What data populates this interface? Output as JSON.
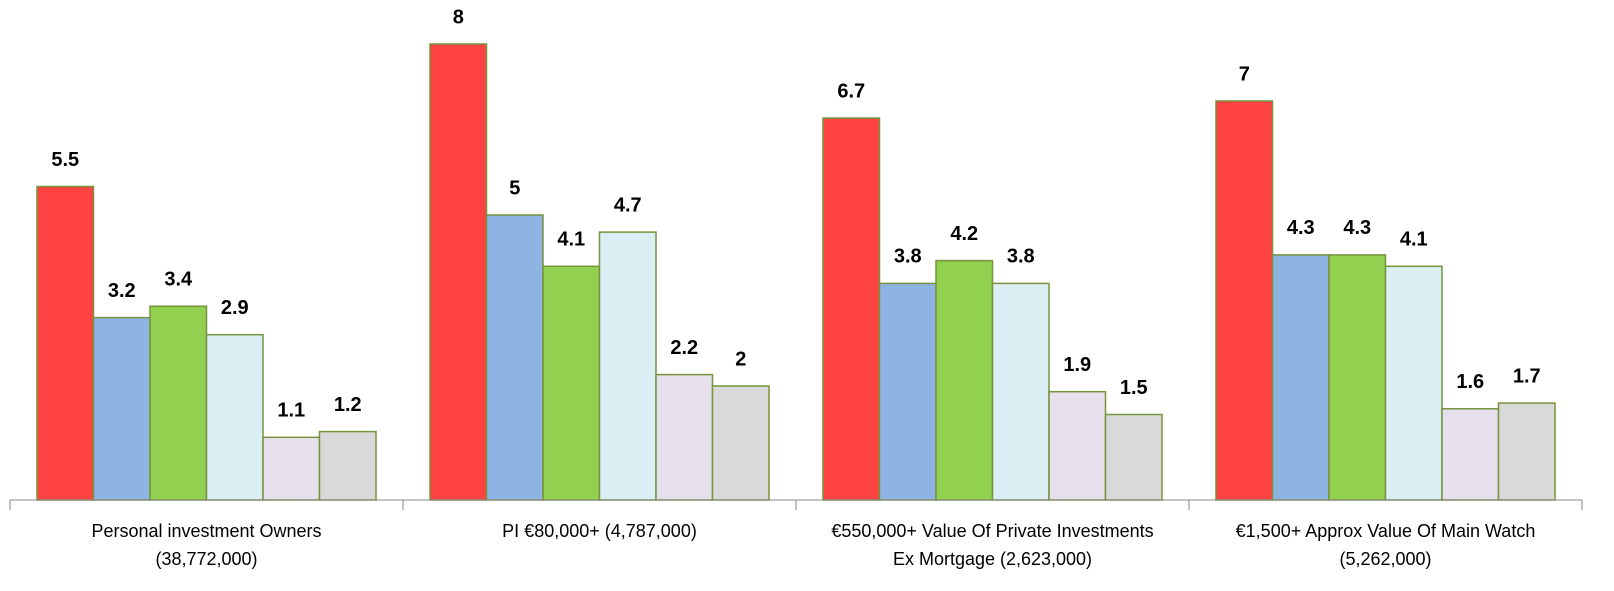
{
  "chart_data": {
    "type": "bar",
    "categories": [
      [
        "Personal investment Owners",
        "(38,772,000)"
      ],
      [
        "PI €80,000+ (4,787,000)"
      ],
      [
        "€550,000+ Value Of Private Investments",
        "Ex Mortgage (2,623,000)"
      ],
      [
        "€1,500+ Approx Value Of Main Watch",
        "(5,262,000)"
      ]
    ],
    "series": [
      {
        "color": "#ff4343",
        "values": [
          5.5,
          8,
          6.7,
          7
        ]
      },
      {
        "color": "#8eb4e3",
        "values": [
          3.2,
          5,
          3.8,
          4.3
        ]
      },
      {
        "color": "#92d050",
        "values": [
          3.4,
          4.1,
          4.2,
          4.3
        ]
      },
      {
        "color": "#dbeef4",
        "values": [
          2.9,
          4.7,
          3.8,
          4.1
        ]
      },
      {
        "color": "#e6e0ec",
        "values": [
          1.1,
          2.2,
          1.9,
          1.6
        ]
      },
      {
        "color": "#d9d9d9",
        "values": [
          1.2,
          2,
          1.5,
          1.7
        ]
      }
    ],
    "ylim": [
      0,
      8
    ]
  }
}
